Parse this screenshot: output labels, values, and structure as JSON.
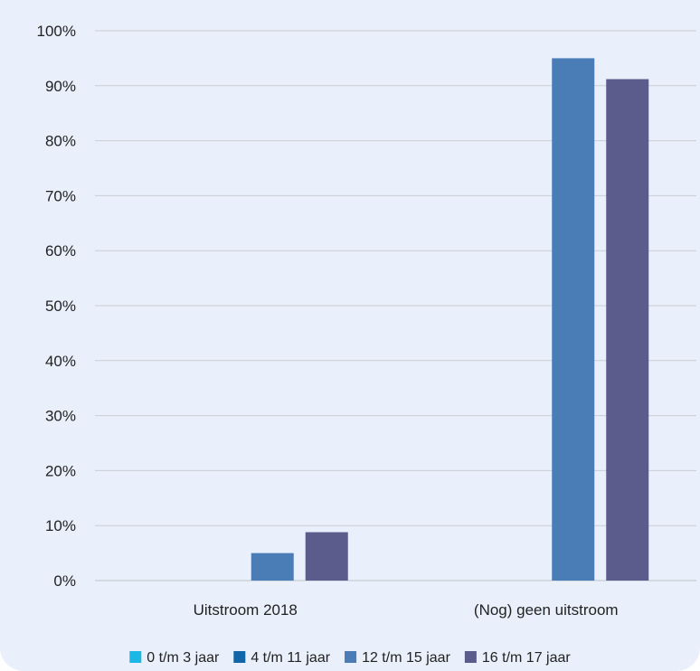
{
  "chart_data": {
    "type": "bar",
    "categories": [
      "Uitstroom 2018",
      "(Nog) geen uitstroom"
    ],
    "series": [
      {
        "name": "0 t/m 3 jaar",
        "color": "#1bb8e6",
        "values": [
          0,
          0
        ]
      },
      {
        "name": "4 t/m 11 jaar",
        "color": "#1265a6",
        "values": [
          0,
          0
        ]
      },
      {
        "name": "12 t/m 15 jaar",
        "color": "#4a7cb6",
        "values": [
          5,
          95
        ]
      },
      {
        "name": "16 t/m 17 jaar",
        "color": "#5b5b8c",
        "values": [
          8.8,
          91.2
        ]
      }
    ],
    "ylim": [
      0,
      100
    ],
    "yticks": [
      "0%",
      "10%",
      "20%",
      "30%",
      "40%",
      "50%",
      "60%",
      "70%",
      "80%",
      "90%",
      "100%"
    ],
    "grid": true,
    "legend_position": "bottom",
    "colors": {
      "background": "#e9f0fb",
      "gridline": "#c9cdd3",
      "axis": "#bfc3c8"
    }
  }
}
